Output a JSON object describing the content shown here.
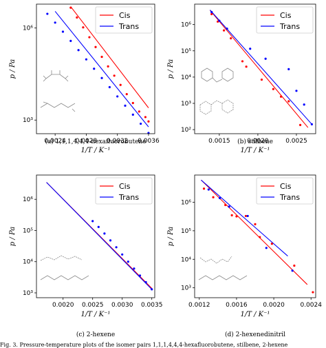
{
  "figure": {
    "bottom_text": "Fig. 3. Pressure-temperature plots of the isomer pairs 1,1,1,4,4,4-hexafluorobutene, stilbene, 2-hexene"
  },
  "chart_data": [
    {
      "type": "line",
      "caption": "(a) 1,1,1,4,4,4-hexafluorobutene",
      "xlabel": "1/T / K⁻¹",
      "ylabel": "p / Pa",
      "yscale": "log",
      "xlim": [
        0.00216,
        0.00368
      ],
      "ylim": [
        360,
        6000000
      ],
      "xticks": [
        0.0024,
        0.0028,
        0.0032,
        0.0036
      ],
      "xtick_labels": [
        "0.0024",
        "0.0028",
        "0.0032",
        "0.0036"
      ],
      "yticks": [
        1000,
        1000000
      ],
      "ytick_labels": [
        "10³",
        "10⁶"
      ],
      "legend": {
        "placement": "top-right",
        "entries": [
          "Cis",
          "Trans"
        ]
      },
      "colors": {
        "Cis": "#ff0000",
        "Trans": "#0000ff"
      },
      "series": [
        {
          "name": "Cis",
          "x": [
            0.0026,
            0.0036
          ],
          "y": [
            5000000,
            2500
          ]
        },
        {
          "name": "Trans",
          "x": [
            0.0024,
            0.0036
          ],
          "y": [
            3500000,
            600
          ]
        }
      ],
      "points": [
        {
          "series": "Cis",
          "x": [
            0.0026,
            0.00268,
            0.00276,
            0.00284,
            0.00292,
            0.003,
            0.00308,
            0.00316,
            0.00324,
            0.00332,
            0.0034,
            0.00348,
            0.00356,
            0.0036
          ],
          "y": [
            4600000,
            2200000,
            1050000,
            500000,
            240000,
            115000,
            56000,
            28000,
            14000,
            7000,
            3600,
            1900,
            1250,
            900
          ]
        },
        {
          "series": "Trans",
          "x": [
            0.0023,
            0.0024,
            0.0025,
            0.0026,
            0.0027,
            0.0028,
            0.0029,
            0.003,
            0.0031,
            0.0032,
            0.0033,
            0.0034,
            0.0035,
            0.0036
          ],
          "y": [
            2900000,
            1500000,
            760000,
            380000,
            190000,
            95000,
            47000,
            23500,
            11800,
            5900,
            2950,
            1500,
            760,
            380
          ]
        }
      ]
    },
    {
      "type": "line",
      "caption": "(b) stilbene",
      "xlabel": "1/T / K⁻¹",
      "ylabel": "p / Pa",
      "yscale": "log",
      "xlim": [
        0.00118,
        0.00275
      ],
      "ylim": [
        70,
        6000000
      ],
      "xticks": [
        0.0015,
        0.002,
        0.0025
      ],
      "xtick_labels": [
        "0.0015",
        "0.0020",
        "0.0025"
      ],
      "yticks": [
        100,
        1000,
        10000,
        100000,
        1000000
      ],
      "ytick_labels": [
        "10²",
        "10³",
        "10⁴",
        "10⁵",
        "10⁶"
      ],
      "legend": {
        "placement": "top-right",
        "entries": [
          "Cis",
          "Trans"
        ]
      },
      "colors": {
        "Cis": "#ff0000",
        "Trans": "#0000ff"
      },
      "series": [
        {
          "name": "Cis",
          "x": [
            0.00138,
            0.00265
          ],
          "y": [
            3500000,
            120
          ]
        },
        {
          "name": "Trans",
          "x": [
            0.00138,
            0.0027
          ],
          "y": [
            3600000,
            160
          ]
        }
      ],
      "points": [
        {
          "series": "Cis",
          "x": [
            0.0014,
            0.00148,
            0.00156,
            0.00165,
            0.0018,
            0.00185,
            0.00205,
            0.0022,
            0.0023,
            0.0024,
            0.00255
          ],
          "y": [
            2500000,
            1300000,
            600000,
            300000,
            40000,
            25000,
            8000,
            3500,
            1800,
            1200,
            150
          ]
        },
        {
          "series": "Trans",
          "x": [
            0.0014,
            0.0015,
            0.0016,
            0.0019,
            0.0021,
            0.0024,
            0.0025,
            0.0026,
            0.0027
          ],
          "y": [
            3000000,
            1400000,
            700000,
            120000,
            50000,
            20000,
            3000,
            900,
            160
          ]
        }
      ]
    },
    {
      "type": "line",
      "caption": "(c) 2-hexene",
      "xlabel": "1/T / K⁻¹",
      "ylabel": "p / Pa",
      "yscale": "log",
      "xlim": [
        0.00155,
        0.00355
      ],
      "ylim": [
        700,
        6000000
      ],
      "xticks": [
        0.002,
        0.0025,
        0.003,
        0.0035
      ],
      "xtick_labels": [
        "0.0020",
        "0.0025",
        "0.0030",
        "0.0035"
      ],
      "yticks": [
        1000,
        10000,
        100000,
        1000000
      ],
      "ytick_labels": [
        "10³",
        "10⁴",
        "10⁵",
        "10⁶"
      ],
      "legend": {
        "placement": "top-right",
        "entries": [
          "Cis",
          "Trans"
        ]
      },
      "colors": {
        "Cis": "#ff0000",
        "Trans": "#0000ff"
      },
      "series": [
        {
          "name": "Cis",
          "x": [
            0.00172,
            0.0035
          ],
          "y": [
            3500000,
            1400
          ]
        },
        {
          "name": "Trans",
          "x": [
            0.00172,
            0.0035
          ],
          "y": [
            3500000,
            1300
          ]
        }
      ],
      "points": [
        {
          "series": "Trans",
          "x": [
            0.0025,
            0.0026,
            0.0027,
            0.0028,
            0.0029,
            0.003,
            0.0031,
            0.0032,
            0.0033,
            0.0034,
            0.0035
          ],
          "y": [
            200000,
            130000,
            80000,
            48000,
            29000,
            17000,
            10000,
            6000,
            3600,
            2200,
            1300
          ]
        }
      ]
    },
    {
      "type": "line",
      "caption": "(d) 2-hexenedinitril",
      "xlabel": "1/T / K⁻¹",
      "ylabel": "p / Pa",
      "yscale": "log",
      "xlim": [
        0.00115,
        0.00245
      ],
      "ylim": [
        450,
        9000000
      ],
      "xticks": [
        0.0012,
        0.0016,
        0.002,
        0.0024
      ],
      "xtick_labels": [
        "0.0012",
        "0.0016",
        "0.0020",
        "0.0024"
      ],
      "yticks": [
        1000,
        10000,
        100000,
        1000000
      ],
      "ytick_labels": [
        "10³",
        "10⁴",
        "10⁵",
        "10⁶"
      ],
      "legend": {
        "placement": "top-right",
        "entries": [
          "Cis",
          "Trans"
        ]
      },
      "colors": {
        "Cis": "#ff0000",
        "Trans": "#0000ff"
      },
      "series": [
        {
          "name": "Cis",
          "x": [
            0.00122,
            0.00236
          ],
          "y": [
            6000000,
            1300
          ]
        },
        {
          "name": "Trans",
          "x": [
            0.00122,
            0.00215
          ],
          "y": [
            6000000,
            13000
          ]
        }
      ],
      "points": [
        {
          "series": "Cis",
          "x": [
            0.00125,
            0.00135,
            0.00148,
            0.00155,
            0.0016,
            0.0017,
            0.0018,
            0.00185,
            0.00198,
            0.00222,
            0.00242
          ],
          "y": [
            3000000,
            1500000,
            800000,
            350000,
            320000,
            330000,
            170000,
            60000,
            35000,
            6000,
            700
          ]
        },
        {
          "series": "Trans",
          "x": [
            0.0013,
            0.00142,
            0.00152,
            0.00172,
            0.00192,
            0.0022
          ],
          "y": [
            2800000,
            1400000,
            700000,
            330000,
            25000,
            4000
          ]
        }
      ]
    }
  ]
}
